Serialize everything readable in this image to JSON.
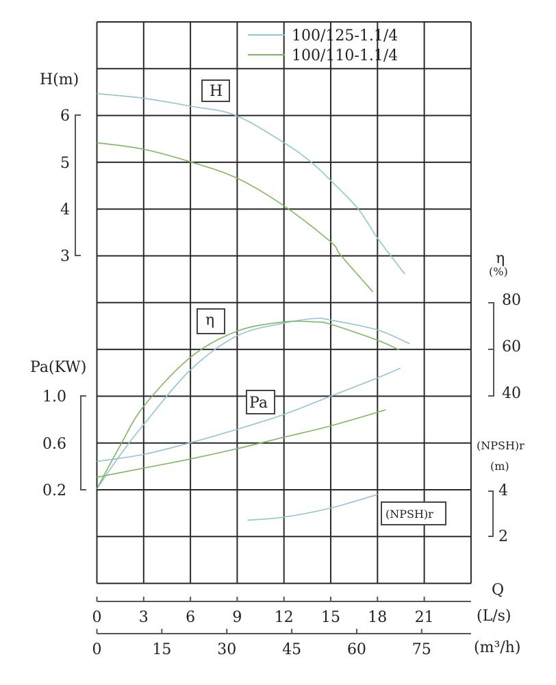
{
  "chart_data": {
    "type": "line",
    "title": "",
    "legend": {
      "placement": "top-right",
      "entries": [
        "100/125-1.1/4",
        "100/110-1.1/4"
      ]
    },
    "grid": true,
    "x_axis": {
      "label": "Q",
      "unit_primary": "(L/s)",
      "ticks_primary": [
        0,
        3,
        6,
        9,
        12,
        15,
        18,
        21
      ],
      "unit_secondary": "(m³/h)",
      "ticks_secondary": [
        0,
        15,
        30,
        45,
        60,
        75
      ],
      "range_ls": [
        0,
        24
      ]
    },
    "y_axes": {
      "H": {
        "label": "H(m)",
        "ticks": [
          "6",
          "5",
          "4",
          "3"
        ],
        "values": [
          6,
          5,
          4,
          3
        ],
        "side": "left"
      },
      "Pa": {
        "label": "Pa(KW)",
        "ticks": [
          "1.0",
          "0.6",
          "0.2"
        ],
        "values": [
          1.0,
          0.6,
          0.2
        ],
        "side": "left"
      },
      "eta": {
        "label": "η",
        "unit": "(%)",
        "ticks": [
          "80",
          "60",
          "40"
        ],
        "values": [
          80,
          60,
          40
        ],
        "side": "right"
      },
      "NPSH": {
        "label": "(NPSH)r",
        "unit": "(m)",
        "ticks": [
          "4",
          "2"
        ],
        "values": [
          4,
          2
        ],
        "side": "right"
      }
    },
    "curve_labels": {
      "H": "H",
      "eta": "η",
      "Pa": "Pa",
      "NPSH": "(NPSH)r"
    },
    "colors": {
      "100/125-1.1/4": "#8ec6d6",
      "100/110-1.1/4": "#7cb860"
    },
    "series": [
      {
        "name": "100/125-1.1/4",
        "H": [
          [
            0,
            6.46
          ],
          [
            3,
            6.36
          ],
          [
            6,
            6.19
          ],
          [
            8.85,
            6.0
          ],
          [
            12,
            5.41
          ],
          [
            13.76,
            4.99
          ],
          [
            15,
            4.6
          ],
          [
            16.75,
            4.0
          ],
          [
            18,
            3.37
          ],
          [
            19.76,
            2.6
          ]
        ],
        "eta": [
          [
            0,
            0.5
          ],
          [
            1.5,
            15
          ],
          [
            3,
            27.9
          ],
          [
            6,
            51.3
          ],
          [
            9,
            65.9
          ],
          [
            12,
            71.3
          ],
          [
            14,
            73.3
          ],
          [
            15,
            72.6
          ],
          [
            18,
            68.4
          ],
          [
            20.05,
            62.5
          ]
        ],
        "Pa": [
          [
            0,
            0.44
          ],
          [
            3,
            0.5
          ],
          [
            6,
            0.6
          ],
          [
            9,
            0.715
          ],
          [
            12,
            0.842
          ],
          [
            15,
            0.998
          ],
          [
            18,
            1.154
          ],
          [
            19.47,
            1.238
          ]
        ],
        "NPSH": [
          [
            9.66,
            2.7
          ],
          [
            12,
            2.83
          ],
          [
            15,
            3.22
          ],
          [
            18,
            3.8
          ]
        ]
      },
      {
        "name": "100/110-1.1/4",
        "H": [
          [
            0,
            5.41
          ],
          [
            3,
            5.27
          ],
          [
            6,
            5.0
          ],
          [
            9,
            4.65
          ],
          [
            12,
            4.06
          ],
          [
            15,
            3.29
          ],
          [
            15.65,
            3.0
          ],
          [
            17.71,
            2.22
          ]
        ],
        "eta": [
          [
            0,
            0.5
          ],
          [
            1.5,
            19
          ],
          [
            3,
            35.7
          ],
          [
            6,
            56.7
          ],
          [
            9,
            67.9
          ],
          [
            12,
            71.8
          ],
          [
            14,
            71.8
          ],
          [
            15,
            70.8
          ],
          [
            18,
            64.0
          ],
          [
            19.4,
            59.8
          ]
        ],
        "Pa": [
          [
            0,
            0.305
          ],
          [
            3,
            0.383
          ],
          [
            6,
            0.461
          ],
          [
            9,
            0.549
          ],
          [
            12,
            0.647
          ],
          [
            15,
            0.744
          ],
          [
            18.52,
            0.881
          ]
        ]
      }
    ]
  }
}
